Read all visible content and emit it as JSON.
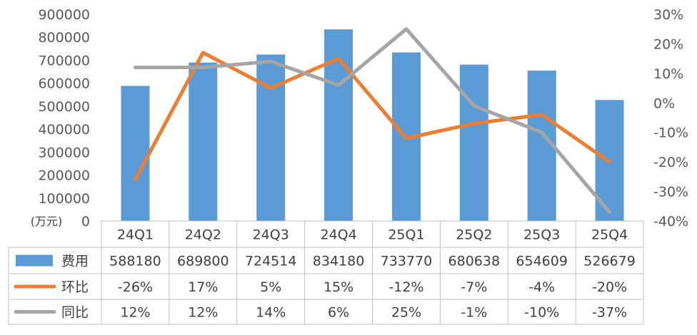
{
  "chart_data": {
    "type": "bar",
    "categories": [
      "24Q1",
      "24Q2",
      "24Q3",
      "24Q4",
      "25Q1",
      "25Q2",
      "25Q3",
      "25Q4"
    ],
    "series": [
      {
        "name": "费用",
        "type": "bar",
        "axis": "left",
        "color": "#5B9BD5",
        "values": [
          588180,
          689800,
          724514,
          834180,
          733770,
          680638,
          654609,
          526679
        ]
      },
      {
        "name": "环比",
        "type": "line",
        "axis": "right",
        "color": "#ED7D31",
        "values": [
          -26,
          17,
          5,
          15,
          -12,
          -7,
          -4,
          -20
        ]
      },
      {
        "name": "同比",
        "type": "line",
        "axis": "right",
        "color": "#A5A5A5",
        "values": [
          12,
          12,
          14,
          6,
          25,
          -1,
          -10,
          -37
        ]
      }
    ],
    "table_text": [
      [
        "588180",
        "689800",
        "724514",
        "834180",
        "733770",
        "680638",
        "654609",
        "526679"
      ],
      [
        "-26%",
        "17%",
        "5%",
        "15%",
        "-12%",
        "-7%",
        "-4%",
        "-20%"
      ],
      [
        "12%",
        "12%",
        "14%",
        "6%",
        "25%",
        "-1%",
        "-10%",
        "-37%"
      ]
    ],
    "ylim_left": [
      0,
      900000
    ],
    "left_ticks": [
      "0",
      "100000",
      "200000",
      "300000",
      "400000",
      "500000",
      "600000",
      "700000",
      "800000",
      "900000"
    ],
    "ylim_right": [
      -40,
      30
    ],
    "right_ticks": [
      "-40%",
      "-30%",
      "-20%",
      "-10%",
      "0%",
      "10%",
      "20%",
      "30%"
    ],
    "ylabel_left": "(万元)",
    "grid": false,
    "legend": "data-table"
  }
}
